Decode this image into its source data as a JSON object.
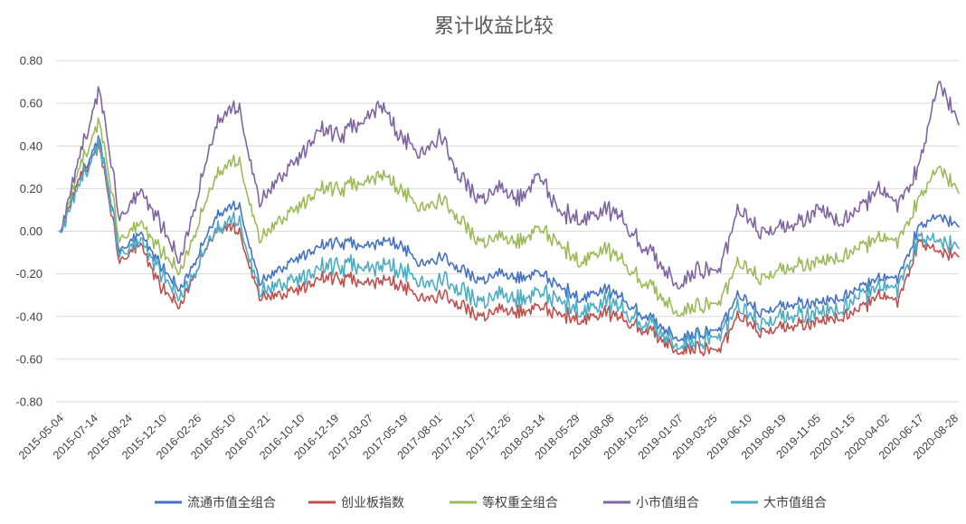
{
  "chart_data": {
    "type": "line",
    "title": "累计收益比较",
    "ylim": [
      -0.8,
      0.8
    ],
    "y_ticks": [
      "0.80",
      "0.60",
      "0.40",
      "0.20",
      "0.00",
      "-0.20",
      "-0.40",
      "-0.60",
      "-0.80"
    ],
    "grid": true,
    "legend_position": "bottom",
    "x_tick_labels": [
      "2015-05-04",
      "2015-07-14",
      "2015-09-24",
      "2015-12-10",
      "2016-02-26",
      "2016-05-10",
      "2016-07-21",
      "2016-10-10",
      "2016-12-19",
      "2017-03-07",
      "2017-05-19",
      "2017-08-01",
      "2017-10-17",
      "2017-12-26",
      "2018-03-14",
      "2018-05-29",
      "2018-08-08",
      "2018-10-25",
      "2019-01-07",
      "2019-03-25",
      "2019-06-10",
      "2019-08-19",
      "2019-11-05",
      "2020-01-15",
      "2020-04-02",
      "2020-06-17",
      "2020-08-28"
    ],
    "series": [
      {
        "name": "流通市值全组合",
        "color": "#4472C4",
        "values": [
          0.0,
          0.25,
          0.44,
          -0.1,
          0.0,
          -0.15,
          -0.28,
          -0.1,
          0.1,
          0.12,
          -0.25,
          -0.18,
          -0.12,
          -0.07,
          -0.05,
          -0.07,
          -0.05,
          -0.06,
          -0.16,
          -0.12,
          -0.18,
          -0.23,
          -0.2,
          -0.22,
          -0.19,
          -0.25,
          -0.32,
          -0.27,
          -0.3,
          -0.38,
          -0.44,
          -0.5,
          -0.48,
          -0.47,
          -0.3,
          -0.38,
          -0.35,
          -0.33,
          -0.34,
          -0.31,
          -0.27,
          -0.22,
          -0.22,
          0.02,
          0.07,
          0.02
        ]
      },
      {
        "name": "创业板指数",
        "color": "#C0504D",
        "values": [
          0.0,
          0.25,
          0.4,
          -0.15,
          -0.05,
          -0.25,
          -0.36,
          -0.15,
          0.03,
          0.0,
          -0.32,
          -0.3,
          -0.27,
          -0.22,
          -0.22,
          -0.24,
          -0.23,
          -0.25,
          -0.32,
          -0.3,
          -0.35,
          -0.4,
          -0.37,
          -0.38,
          -0.35,
          -0.38,
          -0.42,
          -0.38,
          -0.4,
          -0.45,
          -0.5,
          -0.56,
          -0.55,
          -0.57,
          -0.4,
          -0.47,
          -0.45,
          -0.43,
          -0.43,
          -0.4,
          -0.37,
          -0.3,
          -0.33,
          -0.05,
          -0.1,
          -0.12
        ]
      },
      {
        "name": "等权重全组合",
        "color": "#9BBB59",
        "values": [
          0.0,
          0.3,
          0.52,
          -0.05,
          0.05,
          -0.08,
          -0.2,
          0.05,
          0.3,
          0.33,
          -0.05,
          0.05,
          0.12,
          0.2,
          0.2,
          0.22,
          0.27,
          0.2,
          0.1,
          0.15,
          0.05,
          -0.05,
          -0.03,
          -0.05,
          0.02,
          -0.05,
          -0.15,
          -0.08,
          -0.12,
          -0.22,
          -0.3,
          -0.38,
          -0.35,
          -0.35,
          -0.15,
          -0.22,
          -0.18,
          -0.15,
          -0.15,
          -0.12,
          -0.08,
          -0.03,
          -0.05,
          0.15,
          0.3,
          0.18
        ]
      },
      {
        "name": "小市值组合",
        "color": "#8064A2",
        "values": [
          0.0,
          0.35,
          0.67,
          0.05,
          0.2,
          0.05,
          -0.15,
          0.2,
          0.55,
          0.58,
          0.12,
          0.25,
          0.35,
          0.48,
          0.45,
          0.5,
          0.6,
          0.45,
          0.35,
          0.45,
          0.25,
          0.15,
          0.2,
          0.15,
          0.27,
          0.1,
          0.05,
          0.1,
          0.08,
          -0.05,
          -0.15,
          -0.25,
          -0.18,
          -0.2,
          0.1,
          0.0,
          0.02,
          0.05,
          0.1,
          0.05,
          0.1,
          0.2,
          0.12,
          0.3,
          0.7,
          0.5
        ]
      },
      {
        "name": "大市值组合",
        "color": "#4BACC6",
        "values": [
          0.0,
          0.22,
          0.42,
          -0.12,
          -0.03,
          -0.18,
          -0.32,
          -0.15,
          0.04,
          0.05,
          -0.3,
          -0.25,
          -0.22,
          -0.17,
          -0.16,
          -0.17,
          -0.16,
          -0.18,
          -0.25,
          -0.23,
          -0.28,
          -0.33,
          -0.3,
          -0.32,
          -0.28,
          -0.31,
          -0.38,
          -0.33,
          -0.35,
          -0.42,
          -0.47,
          -0.53,
          -0.51,
          -0.51,
          -0.36,
          -0.43,
          -0.4,
          -0.38,
          -0.39,
          -0.36,
          -0.31,
          -0.26,
          -0.27,
          -0.03,
          -0.05,
          -0.08
        ]
      }
    ]
  }
}
